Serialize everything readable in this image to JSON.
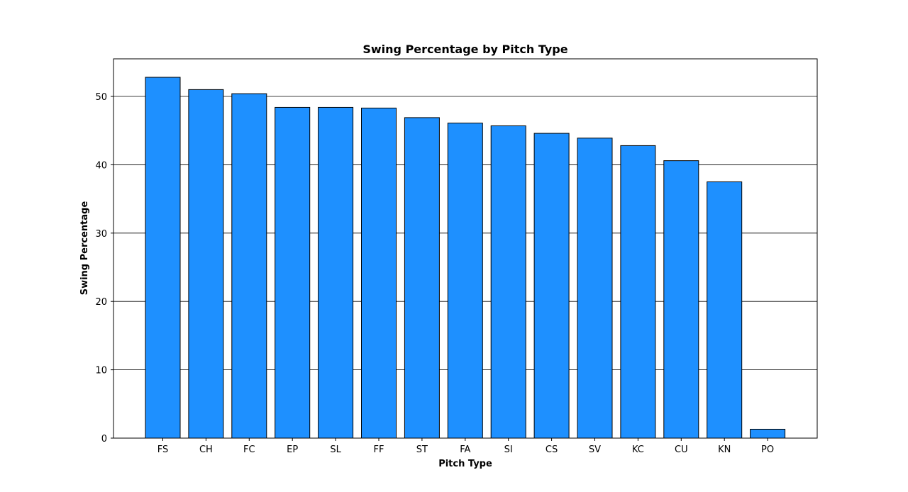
{
  "chart_data": {
    "type": "bar",
    "title": "Swing Percentage by Pitch Type",
    "xlabel": "Pitch Type",
    "ylabel": "Swing Percentage",
    "categories": [
      "FS",
      "CH",
      "FC",
      "EP",
      "SL",
      "FF",
      "ST",
      "FA",
      "SI",
      "CS",
      "SV",
      "KC",
      "CU",
      "KN",
      "PO"
    ],
    "values": [
      52.8,
      51.0,
      50.4,
      48.4,
      48.4,
      48.3,
      46.9,
      46.1,
      45.7,
      44.6,
      43.9,
      42.8,
      40.6,
      37.5,
      1.3
    ],
    "ylim": [
      0,
      55.5
    ],
    "yticks": [
      0,
      10,
      20,
      30,
      40,
      50
    ],
    "grid": "horizontal",
    "bar_color": "#1e90ff",
    "edge_color": "#000000"
  }
}
